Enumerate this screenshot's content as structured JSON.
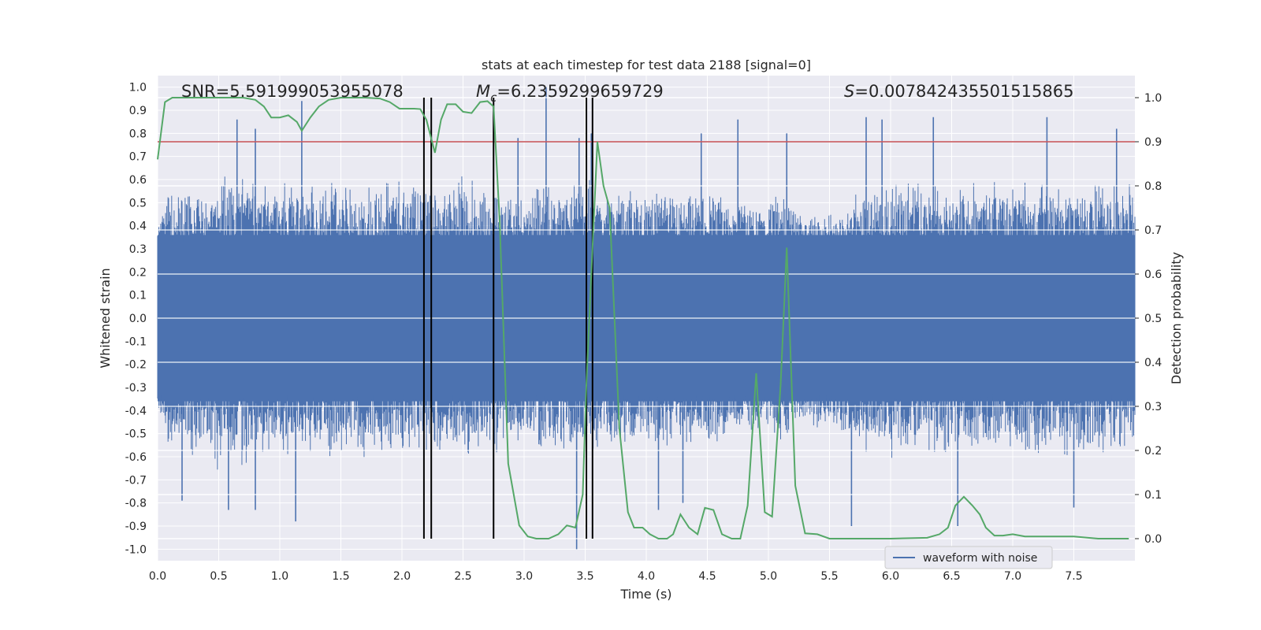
{
  "chart_data": {
    "type": "line",
    "title": "stats at each timestep for test data 2188 [signal=0]",
    "xlabel": "Time (s)",
    "ylabel_left": "Whitened strain",
    "ylabel_right": "Detection probability",
    "xlim": [
      0.0,
      8.0
    ],
    "ylim_left": [
      -1.05,
      1.05
    ],
    "ylim_right": [
      -0.05,
      1.05
    ],
    "x_ticks": [
      "0.0",
      "0.5",
      "1.0",
      "1.5",
      "2.0",
      "2.5",
      "3.0",
      "3.5",
      "4.0",
      "4.5",
      "5.0",
      "5.5",
      "6.0",
      "6.5",
      "7.0",
      "7.5"
    ],
    "y_ticks_left": [
      "1.0",
      "0.9",
      "0.8",
      "0.7",
      "0.6",
      "0.5",
      "0.4",
      "0.3",
      "0.2",
      "0.1",
      "0.0",
      "-0.1",
      "-0.2",
      "-0.3",
      "-0.4",
      "-0.5",
      "-0.6",
      "-0.7",
      "-0.8",
      "-0.9",
      "-1.0"
    ],
    "y_ticks_right": [
      "1.0",
      "0.9",
      "0.8",
      "0.7",
      "0.6",
      "0.5",
      "0.4",
      "0.3",
      "0.2",
      "0.1",
      "0.0"
    ],
    "grid": true,
    "legend": {
      "placement": "lower-center",
      "entries": [
        "waveform with noise"
      ]
    },
    "annotations": {
      "snr": "SNR=5.591999053955078",
      "mc_symbol": "M",
      "mc_subscript": "c",
      "mc_value": "=6.2359299659729",
      "s_symbol": "S",
      "s_value": "=0.007842435501515865"
    },
    "threshold_right": 0.9,
    "vertical_lines_x": [
      2.18,
      2.24,
      2.75,
      3.51,
      3.56
    ],
    "waveform": {
      "name": "waveform with noise",
      "color": "#4c72b0",
      "envelope_upper": [
        [
          0.0,
          0.42
        ],
        [
          0.1,
          0.6
        ],
        [
          0.2,
          0.55
        ],
        [
          0.3,
          0.65
        ],
        [
          0.4,
          0.6
        ],
        [
          0.5,
          0.68
        ],
        [
          0.6,
          0.62
        ],
        [
          0.7,
          0.65
        ],
        [
          0.8,
          0.6
        ],
        [
          0.9,
          0.62
        ],
        [
          1.0,
          0.6
        ],
        [
          1.1,
          0.62
        ],
        [
          1.2,
          0.58
        ],
        [
          1.3,
          0.6
        ],
        [
          1.4,
          0.62
        ],
        [
          1.5,
          0.6
        ],
        [
          1.6,
          0.58
        ],
        [
          1.7,
          0.62
        ],
        [
          1.8,
          0.6
        ],
        [
          1.9,
          0.6
        ],
        [
          2.0,
          0.62
        ],
        [
          2.1,
          0.65
        ],
        [
          2.2,
          0.6
        ],
        [
          2.3,
          0.58
        ],
        [
          2.4,
          0.6
        ],
        [
          2.5,
          0.65
        ],
        [
          2.6,
          0.6
        ],
        [
          2.7,
          0.6
        ],
        [
          2.8,
          0.58
        ],
        [
          2.9,
          0.55
        ],
        [
          3.0,
          0.55
        ],
        [
          3.1,
          0.6
        ],
        [
          3.2,
          0.6
        ],
        [
          3.3,
          0.6
        ],
        [
          3.4,
          0.6
        ],
        [
          3.5,
          0.62
        ],
        [
          3.6,
          0.6
        ],
        [
          3.7,
          0.58
        ],
        [
          3.8,
          0.55
        ],
        [
          3.9,
          0.58
        ],
        [
          4.0,
          0.55
        ],
        [
          4.1,
          0.58
        ],
        [
          4.2,
          0.56
        ],
        [
          4.3,
          0.55
        ],
        [
          4.4,
          0.56
        ],
        [
          4.5,
          0.55
        ],
        [
          4.6,
          0.55
        ],
        [
          4.7,
          0.55
        ],
        [
          4.8,
          0.52
        ],
        [
          4.9,
          0.5
        ],
        [
          5.0,
          0.5
        ],
        [
          5.1,
          0.6
        ],
        [
          5.2,
          0.48
        ],
        [
          5.3,
          0.45
        ],
        [
          5.4,
          0.48
        ],
        [
          5.5,
          0.45
        ],
        [
          5.6,
          0.5
        ],
        [
          5.7,
          0.55
        ],
        [
          5.8,
          0.6
        ],
        [
          5.9,
          0.6
        ],
        [
          6.0,
          0.62
        ],
        [
          6.1,
          0.6
        ],
        [
          6.2,
          0.62
        ],
        [
          6.3,
          0.6
        ],
        [
          6.4,
          0.62
        ],
        [
          6.5,
          0.6
        ],
        [
          6.6,
          0.62
        ],
        [
          6.7,
          0.6
        ],
        [
          6.8,
          0.6
        ],
        [
          6.9,
          0.62
        ],
        [
          7.0,
          0.6
        ],
        [
          7.1,
          0.62
        ],
        [
          7.2,
          0.6
        ],
        [
          7.3,
          0.62
        ],
        [
          7.4,
          0.6
        ],
        [
          7.5,
          0.62
        ],
        [
          7.6,
          0.6
        ],
        [
          7.7,
          0.62
        ],
        [
          7.8,
          0.6
        ],
        [
          7.9,
          0.6
        ],
        [
          8.0,
          0.6
        ]
      ],
      "spikes_upper": [
        [
          0.65,
          0.86
        ],
        [
          0.8,
          0.82
        ],
        [
          1.18,
          0.94
        ],
        [
          2.95,
          0.78
        ],
        [
          3.18,
          1.0
        ],
        [
          3.45,
          0.78
        ],
        [
          3.55,
          0.8
        ],
        [
          4.45,
          0.8
        ],
        [
          4.75,
          0.86
        ],
        [
          5.15,
          0.8
        ],
        [
          5.8,
          0.87
        ],
        [
          5.93,
          0.86
        ],
        [
          6.35,
          0.87
        ],
        [
          7.28,
          0.87
        ],
        [
          7.85,
          0.82
        ]
      ],
      "spikes_lower": [
        [
          0.2,
          -0.79
        ],
        [
          0.58,
          -0.83
        ],
        [
          0.8,
          -0.83
        ],
        [
          1.13,
          -0.88
        ],
        [
          3.43,
          -1.0
        ],
        [
          4.1,
          -0.83
        ],
        [
          4.3,
          -0.8
        ],
        [
          5.68,
          -0.9
        ],
        [
          6.55,
          -0.9
        ],
        [
          7.5,
          -0.82
        ]
      ]
    },
    "probability": {
      "color": "#55a868",
      "points": [
        [
          0.0,
          0.86
        ],
        [
          0.06,
          0.99
        ],
        [
          0.12,
          1.0
        ],
        [
          0.3,
          1.0
        ],
        [
          0.5,
          1.0
        ],
        [
          0.7,
          1.0
        ],
        [
          0.8,
          0.995
        ],
        [
          0.87,
          0.98
        ],
        [
          0.93,
          0.955
        ],
        [
          1.0,
          0.955
        ],
        [
          1.07,
          0.96
        ],
        [
          1.14,
          0.945
        ],
        [
          1.18,
          0.925
        ],
        [
          1.25,
          0.955
        ],
        [
          1.32,
          0.98
        ],
        [
          1.4,
          0.995
        ],
        [
          1.5,
          1.0
        ],
        [
          1.7,
          1.0
        ],
        [
          1.82,
          0.998
        ],
        [
          1.9,
          0.99
        ],
        [
          1.98,
          0.975
        ],
        [
          2.1,
          0.975
        ],
        [
          2.15,
          0.974
        ],
        [
          2.2,
          0.95
        ],
        [
          2.27,
          0.875
        ],
        [
          2.32,
          0.95
        ],
        [
          2.37,
          0.985
        ],
        [
          2.44,
          0.985
        ],
        [
          2.5,
          0.968
        ],
        [
          2.57,
          0.965
        ],
        [
          2.64,
          0.99
        ],
        [
          2.7,
          0.992
        ],
        [
          2.75,
          0.98
        ],
        [
          2.8,
          0.72
        ],
        [
          2.87,
          0.17
        ],
        [
          2.96,
          0.03
        ],
        [
          3.03,
          0.005
        ],
        [
          3.1,
          0.0
        ],
        [
          3.2,
          0.0
        ],
        [
          3.28,
          0.01
        ],
        [
          3.35,
          0.03
        ],
        [
          3.42,
          0.025
        ],
        [
          3.48,
          0.1
        ],
        [
          3.51,
          0.35
        ],
        [
          3.55,
          0.6
        ],
        [
          3.6,
          0.9
        ],
        [
          3.65,
          0.8
        ],
        [
          3.7,
          0.75
        ],
        [
          3.78,
          0.25
        ],
        [
          3.85,
          0.06
        ],
        [
          3.9,
          0.025
        ],
        [
          3.97,
          0.025
        ],
        [
          4.03,
          0.01
        ],
        [
          4.1,
          0.0
        ],
        [
          4.17,
          0.0
        ],
        [
          4.22,
          0.01
        ],
        [
          4.28,
          0.055
        ],
        [
          4.35,
          0.025
        ],
        [
          4.42,
          0.01
        ],
        [
          4.48,
          0.07
        ],
        [
          4.55,
          0.065
        ],
        [
          4.62,
          0.01
        ],
        [
          4.7,
          0.0
        ],
        [
          4.77,
          0.0
        ],
        [
          4.83,
          0.075
        ],
        [
          4.9,
          0.375
        ],
        [
          4.97,
          0.06
        ],
        [
          5.03,
          0.05
        ],
        [
          5.1,
          0.35
        ],
        [
          5.15,
          0.66
        ],
        [
          5.22,
          0.12
        ],
        [
          5.3,
          0.012
        ],
        [
          5.4,
          0.01
        ],
        [
          5.5,
          0.0
        ],
        [
          6.0,
          0.0
        ],
        [
          6.3,
          0.002
        ],
        [
          6.4,
          0.01
        ],
        [
          6.47,
          0.025
        ],
        [
          6.53,
          0.075
        ],
        [
          6.6,
          0.095
        ],
        [
          6.67,
          0.075
        ],
        [
          6.73,
          0.055
        ],
        [
          6.78,
          0.025
        ],
        [
          6.85,
          0.007
        ],
        [
          6.92,
          0.007
        ],
        [
          7.0,
          0.01
        ],
        [
          7.1,
          0.005
        ],
        [
          7.3,
          0.005
        ],
        [
          7.5,
          0.005
        ],
        [
          7.7,
          0.0
        ],
        [
          7.85,
          0.0
        ],
        [
          7.95,
          0.0
        ]
      ]
    }
  }
}
